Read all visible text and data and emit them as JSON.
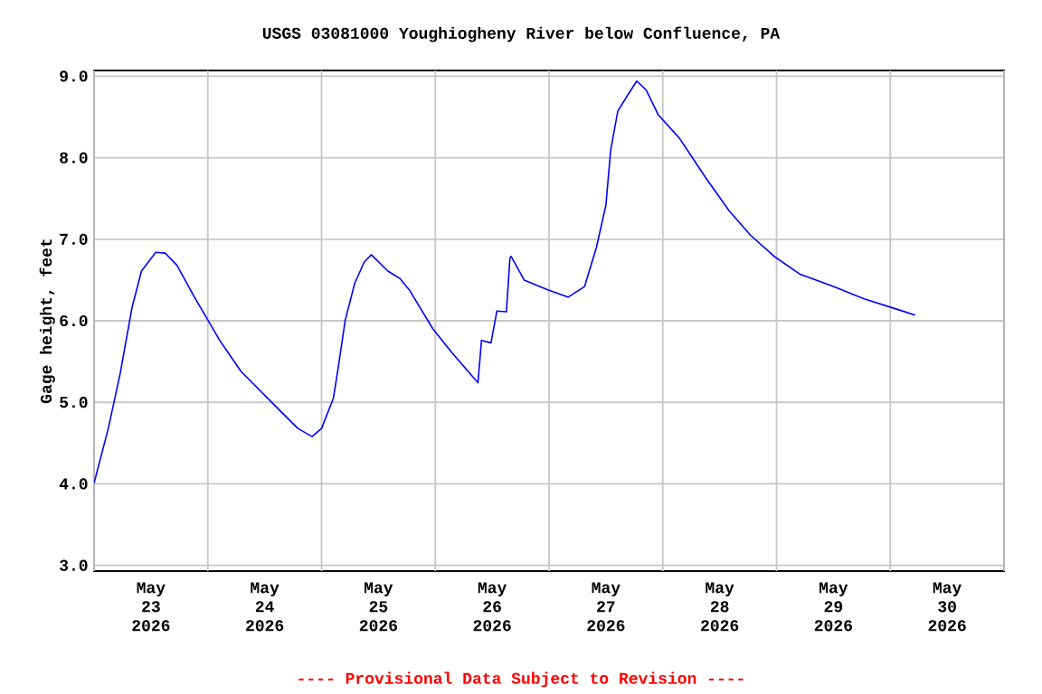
{
  "chart_data": {
    "type": "line",
    "title": "USGS 03081000 Youghiogheny River below Confluence, PA",
    "ylabel": "Gage height, feet",
    "annotations": [
      "---- Provisional Data Subject to Revision ----"
    ],
    "xlim": [
      "2026-05-23T00:00",
      "2026-05-31T00:00"
    ],
    "ylim": [
      2.93,
      9.07
    ],
    "xticks": [
      {
        "value": "2026-05-23T00:00",
        "label": null
      },
      {
        "value": "2026-05-23T12:00",
        "label": "May 23 2026"
      },
      {
        "value": "2026-05-24T00:00",
        "label": null
      },
      {
        "value": "2026-05-24T12:00",
        "label": "May 24 2026"
      },
      {
        "value": "2026-05-25T00:00",
        "label": null
      },
      {
        "value": "2026-05-25T12:00",
        "label": "May 25 2026"
      },
      {
        "value": "2026-05-26T00:00",
        "label": null
      },
      {
        "value": "2026-05-26T12:00",
        "label": "May 26 2026"
      },
      {
        "value": "2026-05-27T00:00",
        "label": null
      },
      {
        "value": "2026-05-27T12:00",
        "label": "May 27 2026"
      },
      {
        "value": "2026-05-28T00:00",
        "label": null
      },
      {
        "value": "2026-05-28T12:00",
        "label": "May 28 2026"
      },
      {
        "value": "2026-05-29T00:00",
        "label": null
      },
      {
        "value": "2026-05-29T12:00",
        "label": "May 29 2026"
      },
      {
        "value": "2026-05-30T00:00",
        "label": null
      },
      {
        "value": "2026-05-30T12:00",
        "label": "May 30 2026"
      },
      {
        "value": "2026-05-31T00:00",
        "label": null
      }
    ],
    "yticks": [
      {
        "value": 3,
        "label": "3.0"
      },
      {
        "value": 4,
        "label": "4.0"
      },
      {
        "value": 5,
        "label": "5.0"
      },
      {
        "value": 6,
        "label": "6.0"
      },
      {
        "value": 7,
        "label": "7.0"
      },
      {
        "value": 8,
        "label": "8.0"
      },
      {
        "value": 9,
        "label": "9.0"
      }
    ],
    "grid": true,
    "marker": "none",
    "line_style": "solid",
    "series": [
      {
        "color": "#0000ff",
        "x": [
          "2026-05-23T00:00",
          "2026-05-23T03:00",
          "2026-05-23T05:30",
          "2026-05-23T08:00",
          "2026-05-23T10:00",
          "2026-05-23T13:00",
          "2026-05-23T15:00",
          "2026-05-23T17:30",
          "2026-05-23T21:00",
          "2026-05-24T00:00",
          "2026-05-24T02:30",
          "2026-05-24T07:00",
          "2026-05-24T14:30",
          "2026-05-24T19:00",
          "2026-05-24T22:00",
          "2026-05-25T00:00",
          "2026-05-25T02:30",
          "2026-05-25T03:30",
          "2026-05-25T05:00",
          "2026-05-25T07:00",
          "2026-05-25T09:00",
          "2026-05-25T10:30",
          "2026-05-25T14:00",
          "2026-05-25T16:30",
          "2026-05-25T18:30",
          "2026-05-25T23:30",
          "2026-05-26T03:30",
          "2026-05-26T09:00",
          "2026-05-26T09:45",
          "2026-05-26T11:45",
          "2026-05-26T13:00",
          "2026-05-26T15:00",
          "2026-05-26T15:45",
          "2026-05-26T16:00",
          "2026-05-26T18:45",
          "2026-05-26T23:45",
          "2026-05-27T04:00",
          "2026-05-27T07:30",
          "2026-05-27T10:00",
          "2026-05-27T12:00",
          "2026-05-27T13:00",
          "2026-05-27T14:30",
          "2026-05-27T16:30",
          "2026-05-27T18:30",
          "2026-05-27T20:30",
          "2026-05-27T23:00",
          "2026-05-28T03:30",
          "2026-05-28T09:00",
          "2026-05-28T14:00",
          "2026-05-28T18:30",
          "2026-05-28T23:30",
          "2026-05-29T05:00",
          "2026-05-29T12:00",
          "2026-05-29T18:30",
          "2026-05-30T01:30",
          "2026-05-30T05:15"
        ],
        "values": [
          4.01,
          4.68,
          5.35,
          6.16,
          6.61,
          6.84,
          6.83,
          6.68,
          6.31,
          6.01,
          5.76,
          5.38,
          4.94,
          4.68,
          4.58,
          4.68,
          5.05,
          5.42,
          6.01,
          6.46,
          6.72,
          6.81,
          6.61,
          6.52,
          6.38,
          5.9,
          5.61,
          5.24,
          5.76,
          5.73,
          6.12,
          6.11,
          6.77,
          6.79,
          6.5,
          6.38,
          6.29,
          6.42,
          6.9,
          7.42,
          8.09,
          8.57,
          8.76,
          8.94,
          8.83,
          8.53,
          8.24,
          7.76,
          7.35,
          7.05,
          6.79,
          6.57,
          6.42,
          6.27,
          6.14,
          6.07
        ]
      }
    ]
  }
}
